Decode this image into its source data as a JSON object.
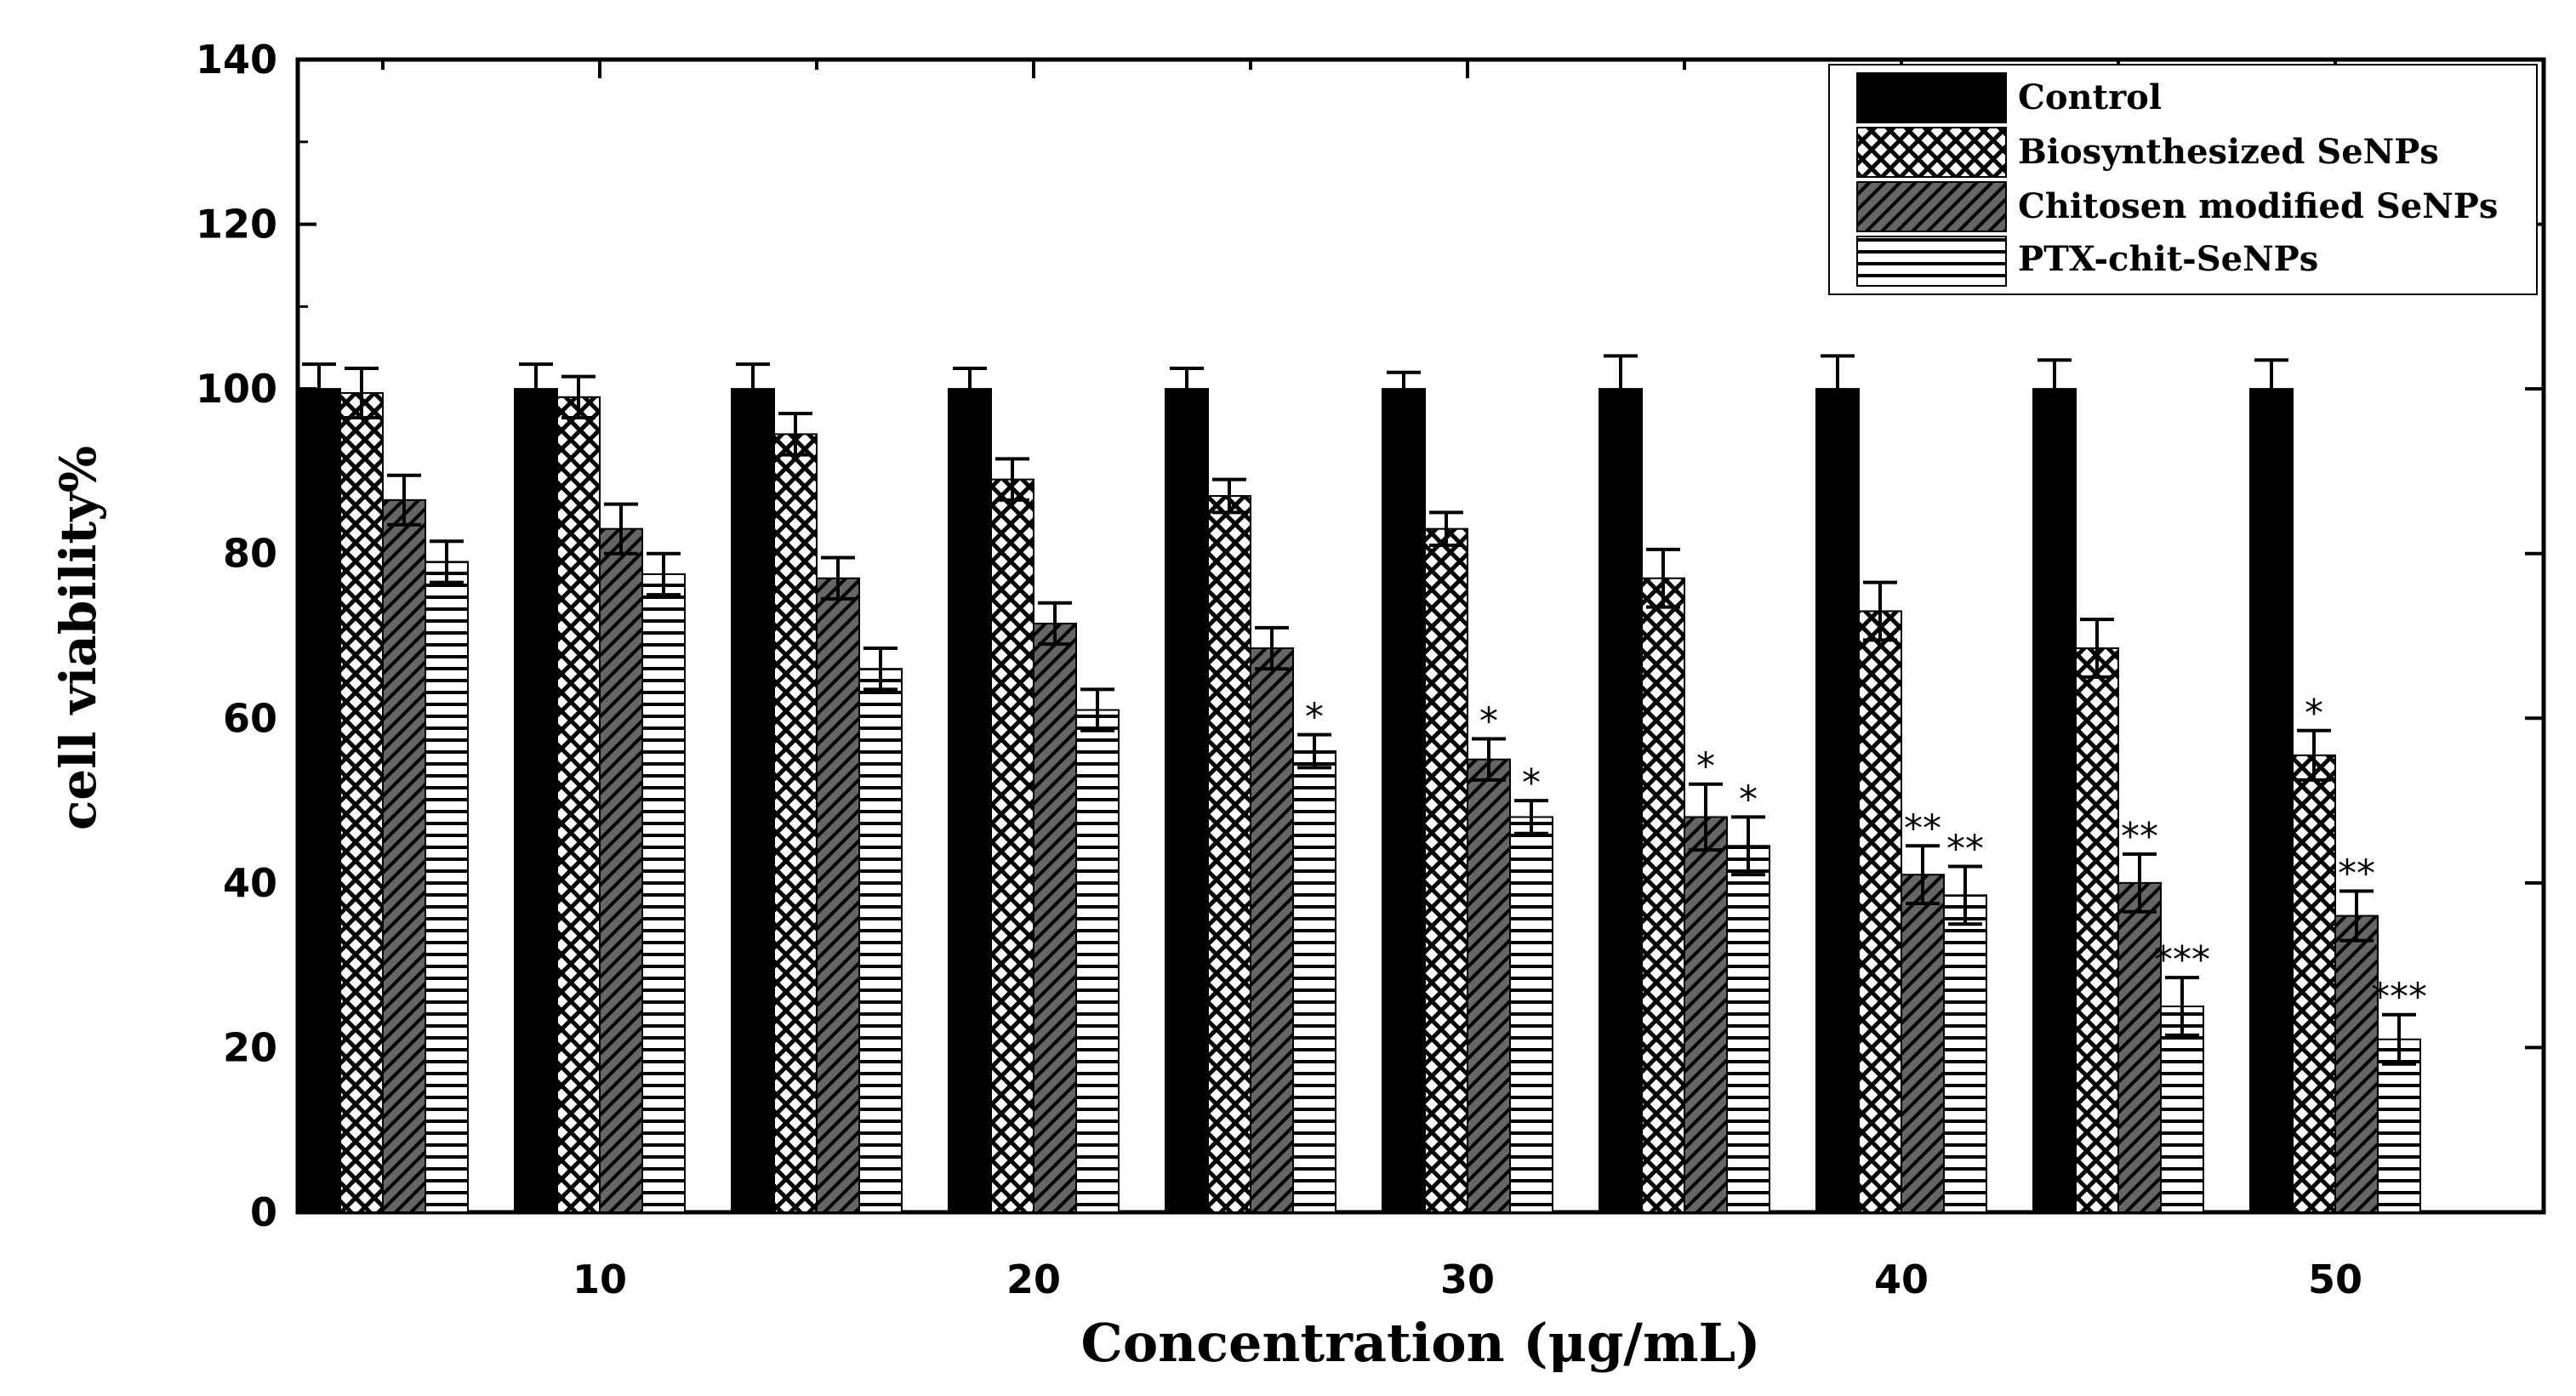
{
  "chart_data": {
    "type": "bar",
    "title": "",
    "xlabel": "Concentration (μg/mL)",
    "ylabel": "cell viability%",
    "ylim": [
      0,
      140
    ],
    "yticks": [
      0,
      20,
      40,
      60,
      80,
      100,
      120,
      140
    ],
    "xtick_labels": [
      "10",
      "20",
      "30",
      "40",
      "50"
    ],
    "groups": 10,
    "legend_position": "top-right",
    "series": [
      {
        "name": "Control",
        "pattern": "solid",
        "values": [
          100,
          100,
          100,
          100,
          100,
          100,
          100,
          100,
          100,
          100
        ],
        "errors": [
          3,
          3,
          3,
          2.5,
          2.5,
          2,
          4,
          4,
          3.5,
          3.5
        ],
        "sig": [
          "",
          "",
          "",
          "",
          "",
          "",
          "",
          "",
          "",
          ""
        ]
      },
      {
        "name": "Biosynthesized SeNPs",
        "pattern": "crosshatch",
        "values": [
          99.5,
          99,
          94.5,
          89,
          87,
          83,
          77,
          73,
          68.5,
          55.5
        ],
        "errors": [
          3,
          2.5,
          2.5,
          2.5,
          2,
          2,
          3.5,
          3.5,
          3.5,
          3
        ],
        "sig": [
          "",
          "",
          "",
          "",
          "",
          "",
          "",
          "",
          "",
          "*"
        ]
      },
      {
        "name": "Chitosen modified SeNPs",
        "pattern": "diagonal",
        "values": [
          86.5,
          83,
          77,
          71.5,
          68.5,
          55,
          48,
          41,
          40,
          36
        ],
        "errors": [
          3,
          3,
          2.5,
          2.5,
          2.5,
          2.5,
          4,
          3.5,
          3.5,
          3
        ],
        "sig": [
          "",
          "",
          "",
          "",
          "",
          "*",
          "*",
          "**",
          "**",
          "**"
        ]
      },
      {
        "name": "PTX-chit-SeNPs",
        "pattern": "horizontal",
        "values": [
          79,
          77.5,
          66,
          61,
          56,
          48,
          44.5,
          38.5,
          25,
          21
        ],
        "errors": [
          2.5,
          2.5,
          2.5,
          2.5,
          2,
          2,
          3.5,
          3.5,
          3.5,
          3
        ],
        "sig": [
          "",
          "",
          "",
          "",
          "*",
          "*",
          "*",
          "**",
          "***",
          "***"
        ]
      }
    ]
  }
}
